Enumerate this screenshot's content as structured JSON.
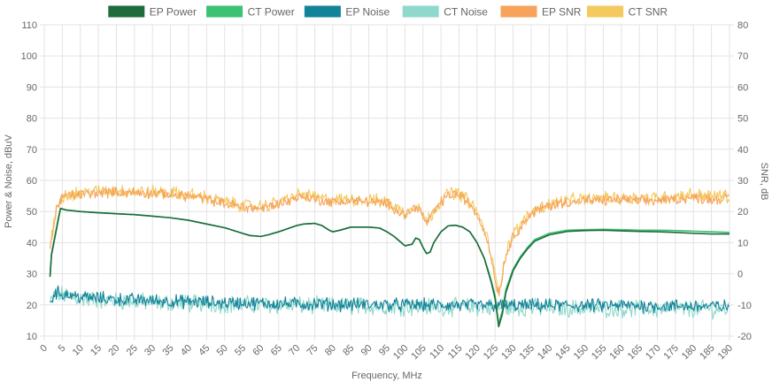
{
  "chart_data": {
    "type": "line",
    "xlabel": "Frequency, MHz",
    "ylabel_left": "Power & Noise, dBuV",
    "ylabel_right": "SNR, dB",
    "xlim": [
      0,
      190
    ],
    "ylim_left": [
      10,
      110
    ],
    "ylim_right": [
      -20,
      80
    ],
    "x_ticks": [
      0,
      5,
      10,
      15,
      20,
      25,
      30,
      35,
      40,
      45,
      50,
      55,
      60,
      65,
      70,
      75,
      80,
      85,
      90,
      95,
      100,
      105,
      110,
      115,
      120,
      125,
      130,
      135,
      140,
      145,
      150,
      155,
      160,
      165,
      170,
      175,
      180,
      185,
      190
    ],
    "y_left_ticks": [
      10,
      20,
      30,
      40,
      50,
      60,
      70,
      80,
      90,
      100,
      110
    ],
    "y_right_ticks": [
      -20,
      -10,
      0,
      10,
      20,
      30,
      40,
      50,
      60,
      70,
      80
    ],
    "grid": true,
    "legend_position": "top-center",
    "series": [
      {
        "name": "EP Power",
        "axis": "left",
        "color": "#1e6b3c",
        "points": [
          [
            1.6,
            29
          ],
          [
            2,
            36
          ],
          [
            3,
            42
          ],
          [
            4,
            48
          ],
          [
            4.5,
            51
          ],
          [
            6,
            50.5
          ],
          [
            10,
            50
          ],
          [
            15,
            49.6
          ],
          [
            20,
            49.3
          ],
          [
            25,
            49
          ],
          [
            30,
            48.5
          ],
          [
            35,
            48
          ],
          [
            40,
            47.2
          ],
          [
            45,
            46
          ],
          [
            50,
            44.8
          ],
          [
            55,
            43
          ],
          [
            57,
            42.3
          ],
          [
            60,
            42
          ],
          [
            62,
            42.5
          ],
          [
            65,
            43.5
          ],
          [
            70,
            45.5
          ],
          [
            72,
            46
          ],
          [
            75,
            46.2
          ],
          [
            77,
            45.5
          ],
          [
            79,
            44
          ],
          [
            80,
            43.5
          ],
          [
            82,
            44
          ],
          [
            85,
            45
          ],
          [
            90,
            45
          ],
          [
            93,
            44.7
          ],
          [
            95,
            43.5
          ],
          [
            97,
            42
          ],
          [
            99,
            40
          ],
          [
            100,
            39
          ],
          [
            102,
            39.5
          ],
          [
            103,
            41.5
          ],
          [
            104,
            41
          ],
          [
            105,
            38.5
          ],
          [
            106,
            36.5
          ],
          [
            107,
            37
          ],
          [
            108,
            40
          ],
          [
            110,
            43.5
          ],
          [
            112,
            45.4
          ],
          [
            114,
            45.6
          ],
          [
            116,
            45
          ],
          [
            118,
            43.5
          ],
          [
            120,
            40
          ],
          [
            122,
            35
          ],
          [
            123,
            31
          ],
          [
            124,
            27
          ],
          [
            125,
            22
          ],
          [
            126,
            13
          ],
          [
            127,
            17
          ],
          [
            128,
            24
          ],
          [
            130,
            31
          ],
          [
            132,
            35
          ],
          [
            134,
            38
          ],
          [
            136,
            40.5
          ],
          [
            140,
            42.5
          ],
          [
            145,
            43.6
          ],
          [
            150,
            43.9
          ],
          [
            155,
            44
          ],
          [
            160,
            43.8
          ],
          [
            165,
            43.6
          ],
          [
            170,
            43.5
          ],
          [
            175,
            43.3
          ],
          [
            180,
            43
          ],
          [
            185,
            42.8
          ],
          [
            190,
            42.8
          ]
        ]
      },
      {
        "name": "CT Power",
        "axis": "left",
        "color": "#3dc173",
        "points": [
          [
            1.6,
            29.5
          ],
          [
            2,
            36.5
          ],
          [
            3,
            42.5
          ],
          [
            4,
            48.5
          ],
          [
            4.5,
            51
          ],
          [
            6,
            50.5
          ],
          [
            10,
            50
          ],
          [
            15,
            49.6
          ],
          [
            20,
            49.3
          ],
          [
            25,
            49
          ],
          [
            30,
            48.5
          ],
          [
            35,
            48
          ],
          [
            40,
            47.2
          ],
          [
            45,
            46
          ],
          [
            50,
            44.8
          ],
          [
            55,
            43
          ],
          [
            57,
            42.3
          ],
          [
            60,
            42
          ],
          [
            62,
            42.5
          ],
          [
            65,
            43.5
          ],
          [
            70,
            45.5
          ],
          [
            72,
            46
          ],
          [
            75,
            46.2
          ],
          [
            77,
            45.5
          ],
          [
            79,
            44
          ],
          [
            80,
            43.5
          ],
          [
            82,
            44
          ],
          [
            85,
            45
          ],
          [
            90,
            45
          ],
          [
            93,
            44.7
          ],
          [
            95,
            43.5
          ],
          [
            97,
            42
          ],
          [
            99,
            40
          ],
          [
            100,
            39
          ],
          [
            102,
            39.5
          ],
          [
            103,
            41.5
          ],
          [
            104,
            41
          ],
          [
            105,
            38.5
          ],
          [
            106,
            36.5
          ],
          [
            107,
            37
          ],
          [
            108,
            40
          ],
          [
            110,
            43.5
          ],
          [
            112,
            45.4
          ],
          [
            114,
            45.6
          ],
          [
            116,
            45
          ],
          [
            118,
            43.5
          ],
          [
            120,
            40
          ],
          [
            122,
            35
          ],
          [
            123,
            31.5
          ],
          [
            124,
            27.5
          ],
          [
            125,
            23
          ],
          [
            126,
            14
          ],
          [
            127,
            18
          ],
          [
            128,
            25
          ],
          [
            130,
            31.5
          ],
          [
            132,
            35.5
          ],
          [
            134,
            38.5
          ],
          [
            136,
            41
          ],
          [
            140,
            43
          ],
          [
            145,
            44
          ],
          [
            150,
            44.2
          ],
          [
            155,
            44.3
          ],
          [
            160,
            44.2
          ],
          [
            165,
            44
          ],
          [
            170,
            44
          ],
          [
            175,
            43.9
          ],
          [
            180,
            43.7
          ],
          [
            185,
            43.5
          ],
          [
            190,
            43.3
          ]
        ]
      },
      {
        "name": "EP Noise",
        "axis": "left",
        "color": "#138399",
        "x_range": [
          1.6,
          190
        ],
        "mean": [
          [
            1.6,
            21
          ],
          [
            3,
            24
          ],
          [
            6,
            23.5
          ],
          [
            10,
            22.5
          ],
          [
            20,
            21.8
          ],
          [
            40,
            21
          ],
          [
            60,
            20.5
          ],
          [
            80,
            20.2
          ],
          [
            100,
            20
          ],
          [
            120,
            19.8
          ],
          [
            140,
            19.8
          ],
          [
            160,
            19.8
          ],
          [
            190,
            19.5
          ]
        ],
        "ripple": 1.8
      },
      {
        "name": "CT Noise",
        "axis": "left",
        "color": "#8ed9cc",
        "x_range": [
          1.6,
          190
        ],
        "mean": [
          [
            1.6,
            20.5
          ],
          [
            3,
            23.5
          ],
          [
            6,
            23
          ],
          [
            10,
            22
          ],
          [
            20,
            21.3
          ],
          [
            40,
            20.5
          ],
          [
            60,
            20
          ],
          [
            80,
            19.7
          ],
          [
            100,
            19.5
          ],
          [
            120,
            19.2
          ],
          [
            140,
            19
          ],
          [
            160,
            18.8
          ],
          [
            190,
            18.6
          ]
        ],
        "ripple": 2.4
      },
      {
        "name": "EP SNR",
        "axis": "right",
        "color": "#f7a35c",
        "x_range": [
          1.6,
          190
        ],
        "mean": [
          [
            1.6,
            8
          ],
          [
            2.5,
            14
          ],
          [
            3.5,
            21
          ],
          [
            4.5,
            24
          ],
          [
            6,
            25
          ],
          [
            10,
            25.5
          ],
          [
            15,
            26
          ],
          [
            20,
            26.3
          ],
          [
            25,
            26
          ],
          [
            30,
            25.8
          ],
          [
            35,
            25.5
          ],
          [
            40,
            25
          ],
          [
            45,
            24
          ],
          [
            50,
            22.5
          ],
          [
            55,
            21.5
          ],
          [
            60,
            21
          ],
          [
            65,
            22.5
          ],
          [
            70,
            24.5
          ],
          [
            72,
            25
          ],
          [
            75,
            24
          ],
          [
            80,
            23
          ],
          [
            85,
            23.5
          ],
          [
            90,
            23.2
          ],
          [
            95,
            22.5
          ],
          [
            98,
            20.5
          ],
          [
            100,
            19
          ],
          [
            102,
            20.5
          ],
          [
            103,
            22
          ],
          [
            104,
            21
          ],
          [
            105,
            18
          ],
          [
            106,
            16.5
          ],
          [
            107,
            17.5
          ],
          [
            108,
            20
          ],
          [
            110,
            23
          ],
          [
            112,
            25.2
          ],
          [
            114,
            25.8
          ],
          [
            116,
            24.5
          ],
          [
            118,
            22.5
          ],
          [
            120,
            19
          ],
          [
            122,
            14
          ],
          [
            123,
            10
          ],
          [
            124,
            5
          ],
          [
            125,
            -2
          ],
          [
            126,
            -6
          ],
          [
            127,
            -1
          ],
          [
            128,
            6
          ],
          [
            130,
            12
          ],
          [
            132,
            15
          ],
          [
            134,
            18
          ],
          [
            136,
            20
          ],
          [
            140,
            22
          ],
          [
            145,
            23
          ],
          [
            150,
            23.5
          ],
          [
            155,
            23.5
          ],
          [
            160,
            24
          ],
          [
            165,
            23.5
          ],
          [
            170,
            23.5
          ],
          [
            175,
            24
          ],
          [
            180,
            24.5
          ],
          [
            185,
            24
          ],
          [
            190,
            24
          ]
        ],
        "ripple": 1.4
      },
      {
        "name": "CT SNR",
        "axis": "right",
        "color": "#f4c95d",
        "x_range": [
          1.6,
          190
        ],
        "mean": [
          [
            1.6,
            9
          ],
          [
            2.5,
            15
          ],
          [
            3.5,
            22
          ],
          [
            4.5,
            24.5
          ],
          [
            6,
            25.5
          ],
          [
            10,
            26
          ],
          [
            15,
            26.5
          ],
          [
            20,
            26.8
          ],
          [
            25,
            26.5
          ],
          [
            30,
            26.3
          ],
          [
            35,
            26
          ],
          [
            40,
            25.5
          ],
          [
            45,
            24.5
          ],
          [
            50,
            23
          ],
          [
            55,
            22
          ],
          [
            60,
            21.5
          ],
          [
            65,
            23
          ],
          [
            70,
            25
          ],
          [
            72,
            25.5
          ],
          [
            75,
            24.5
          ],
          [
            80,
            23.5
          ],
          [
            85,
            24
          ],
          [
            90,
            23.7
          ],
          [
            95,
            23
          ],
          [
            98,
            21
          ],
          [
            100,
            19.5
          ],
          [
            102,
            21
          ],
          [
            103,
            22.5
          ],
          [
            104,
            21.5
          ],
          [
            105,
            18.5
          ],
          [
            106,
            17
          ],
          [
            107,
            18
          ],
          [
            108,
            20.5
          ],
          [
            110,
            23.5
          ],
          [
            112,
            25.7
          ],
          [
            114,
            26.3
          ],
          [
            116,
            25
          ],
          [
            118,
            23
          ],
          [
            120,
            19.5
          ],
          [
            122,
            14.5
          ],
          [
            123,
            10.5
          ],
          [
            124,
            5.5
          ],
          [
            125,
            -1
          ],
          [
            126,
            -5
          ],
          [
            127,
            0
          ],
          [
            128,
            7
          ],
          [
            130,
            12.5
          ],
          [
            132,
            15.5
          ],
          [
            134,
            18.5
          ],
          [
            136,
            20.5
          ],
          [
            140,
            22.5
          ],
          [
            145,
            23.5
          ],
          [
            150,
            24
          ],
          [
            155,
            24.2
          ],
          [
            160,
            24.5
          ],
          [
            165,
            24.3
          ],
          [
            170,
            24.5
          ],
          [
            175,
            25
          ],
          [
            180,
            25.5
          ],
          [
            185,
            25
          ],
          [
            190,
            25
          ]
        ],
        "ripple": 1.8
      }
    ]
  }
}
